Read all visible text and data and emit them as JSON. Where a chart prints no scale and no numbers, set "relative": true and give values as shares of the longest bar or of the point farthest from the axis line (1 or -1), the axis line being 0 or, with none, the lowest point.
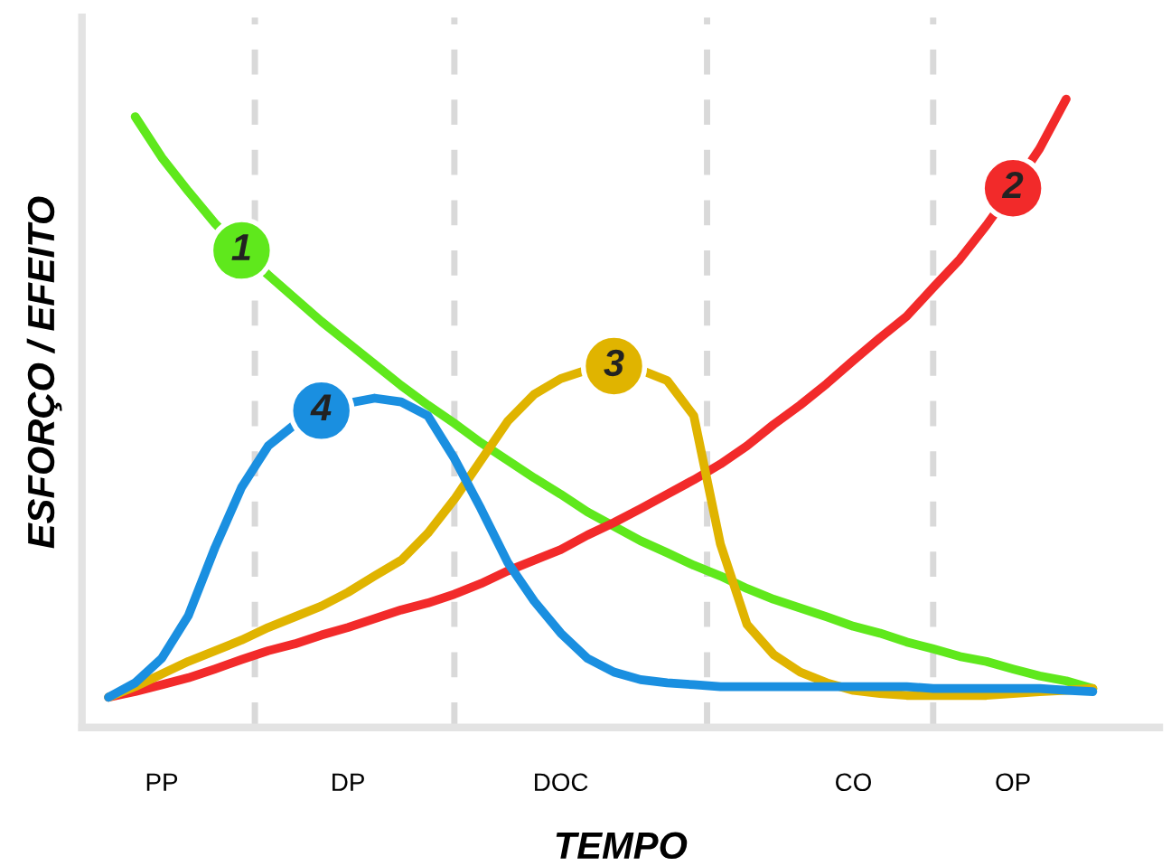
{
  "chart_data": {
    "type": "line",
    "relative": true,
    "xlabel": "TEMPO",
    "ylabel": "ESFORÇO / EFEITO",
    "categories": [
      null,
      null,
      "PP",
      null,
      null,
      null,
      null,
      null,
      null,
      "DP",
      null,
      null,
      null,
      null,
      null,
      null,
      null,
      "DOC",
      null,
      null,
      null,
      null,
      null,
      null,
      null,
      null,
      null,
      null,
      "CO",
      null,
      null,
      null,
      null,
      null,
      "OP",
      null,
      null,
      null
    ],
    "grid": "x",
    "legend": false,
    "marker": "none",
    "line_style": "solid",
    "series": [
      {
        "name": "1",
        "color": "#5fe81c",
        "values": [
          null,
          0.972,
          0.907,
          0.853,
          0.802,
          0.759,
          0.72,
          0.683,
          0.646,
          0.612,
          0.578,
          0.544,
          0.513,
          0.484,
          0.453,
          0.425,
          0.397,
          0.371,
          0.343,
          0.32,
          0.297,
          0.278,
          0.258,
          0.241,
          0.221,
          0.204,
          0.19,
          0.176,
          0.161,
          0.15,
          0.136,
          0.125,
          0.113,
          0.105,
          0.093,
          0.082,
          0.074,
          0.062
        ]
      },
      {
        "name": "2",
        "color": "#f22a2a",
        "values": [
          0.048,
          0.057,
          0.068,
          0.079,
          0.093,
          0.108,
          0.122,
          0.133,
          0.147,
          0.159,
          0.173,
          0.187,
          0.198,
          0.212,
          0.229,
          0.249,
          0.266,
          0.283,
          0.306,
          0.326,
          0.348,
          0.371,
          0.394,
          0.419,
          0.448,
          0.482,
          0.513,
          0.547,
          0.584,
          0.62,
          0.654,
          0.7,
          0.745,
          0.799,
          0.858,
          0.921,
          1,
          null
        ]
      },
      {
        "name": "3",
        "color": "#e0b400",
        "values": [
          0.048,
          0.065,
          0.085,
          0.105,
          0.122,
          0.139,
          0.159,
          0.176,
          0.193,
          0.215,
          0.241,
          0.266,
          0.309,
          0.363,
          0.425,
          0.487,
          0.53,
          0.555,
          0.569,
          0.575,
          0.569,
          0.552,
          0.496,
          0.292,
          0.164,
          0.116,
          0.088,
          0.071,
          0.059,
          0.054,
          0.051,
          0.051,
          0.051,
          0.051,
          0.054,
          0.057,
          0.059,
          0.062
        ]
      },
      {
        "name": "4",
        "color": "#1a8fe0",
        "values": [
          0.048,
          0.071,
          0.11,
          0.178,
          0.286,
          0.382,
          0.448,
          0.482,
          0.504,
          0.516,
          0.524,
          0.518,
          0.496,
          0.428,
          0.348,
          0.263,
          0.201,
          0.15,
          0.11,
          0.088,
          0.076,
          0.071,
          0.068,
          0.065,
          0.065,
          0.065,
          0.065,
          0.065,
          0.065,
          0.065,
          0.065,
          0.062,
          0.062,
          0.062,
          0.062,
          0.062,
          0.059,
          0.057
        ]
      }
    ]
  }
}
